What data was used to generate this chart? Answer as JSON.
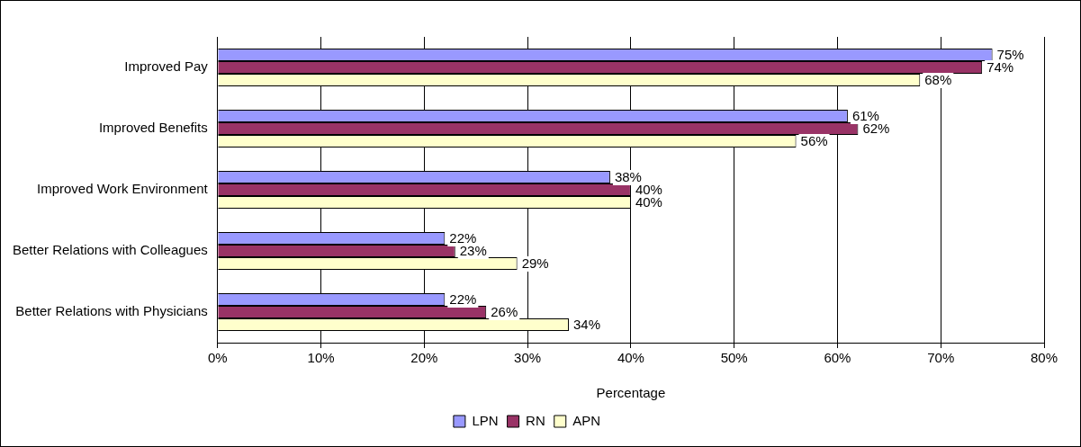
{
  "chart_data": {
    "type": "bar",
    "orientation": "horizontal",
    "xlabel": "Percentage",
    "categories": [
      "Improved Pay",
      "Improved Benefits",
      "Improved Work Environment",
      "Better Relations with Colleagues",
      "Better Relations with Physicians"
    ],
    "series": [
      {
        "name": "LPN",
        "color": "#9999ff",
        "values": [
          75,
          61,
          38,
          22,
          22
        ],
        "value_labels": [
          "75%",
          "61%",
          "38%",
          "22%",
          "22%"
        ]
      },
      {
        "name": "RN",
        "color": "#993366",
        "values": [
          74,
          62,
          40,
          23,
          26
        ],
        "value_labels": [
          "74%",
          "62%",
          "40%",
          "23%",
          "26%"
        ]
      },
      {
        "name": "APN",
        "color": "#ffffcc",
        "values": [
          68,
          56,
          40,
          29,
          34
        ],
        "value_labels": [
          "68%",
          "56%",
          "40%",
          "29%",
          "34%"
        ]
      }
    ],
    "xlim": [
      0,
      80
    ],
    "xticks": [
      {
        "value": 0,
        "label": "0%"
      },
      {
        "value": 10,
        "label": "10%"
      },
      {
        "value": 20,
        "label": "20%"
      },
      {
        "value": 30,
        "label": "30%"
      },
      {
        "value": 40,
        "label": "40%"
      },
      {
        "value": 50,
        "label": "50%"
      },
      {
        "value": 60,
        "label": "60%"
      },
      {
        "value": 70,
        "label": "70%"
      },
      {
        "value": 80,
        "label": "80%"
      }
    ],
    "grid": "x",
    "legend": "bottom"
  }
}
